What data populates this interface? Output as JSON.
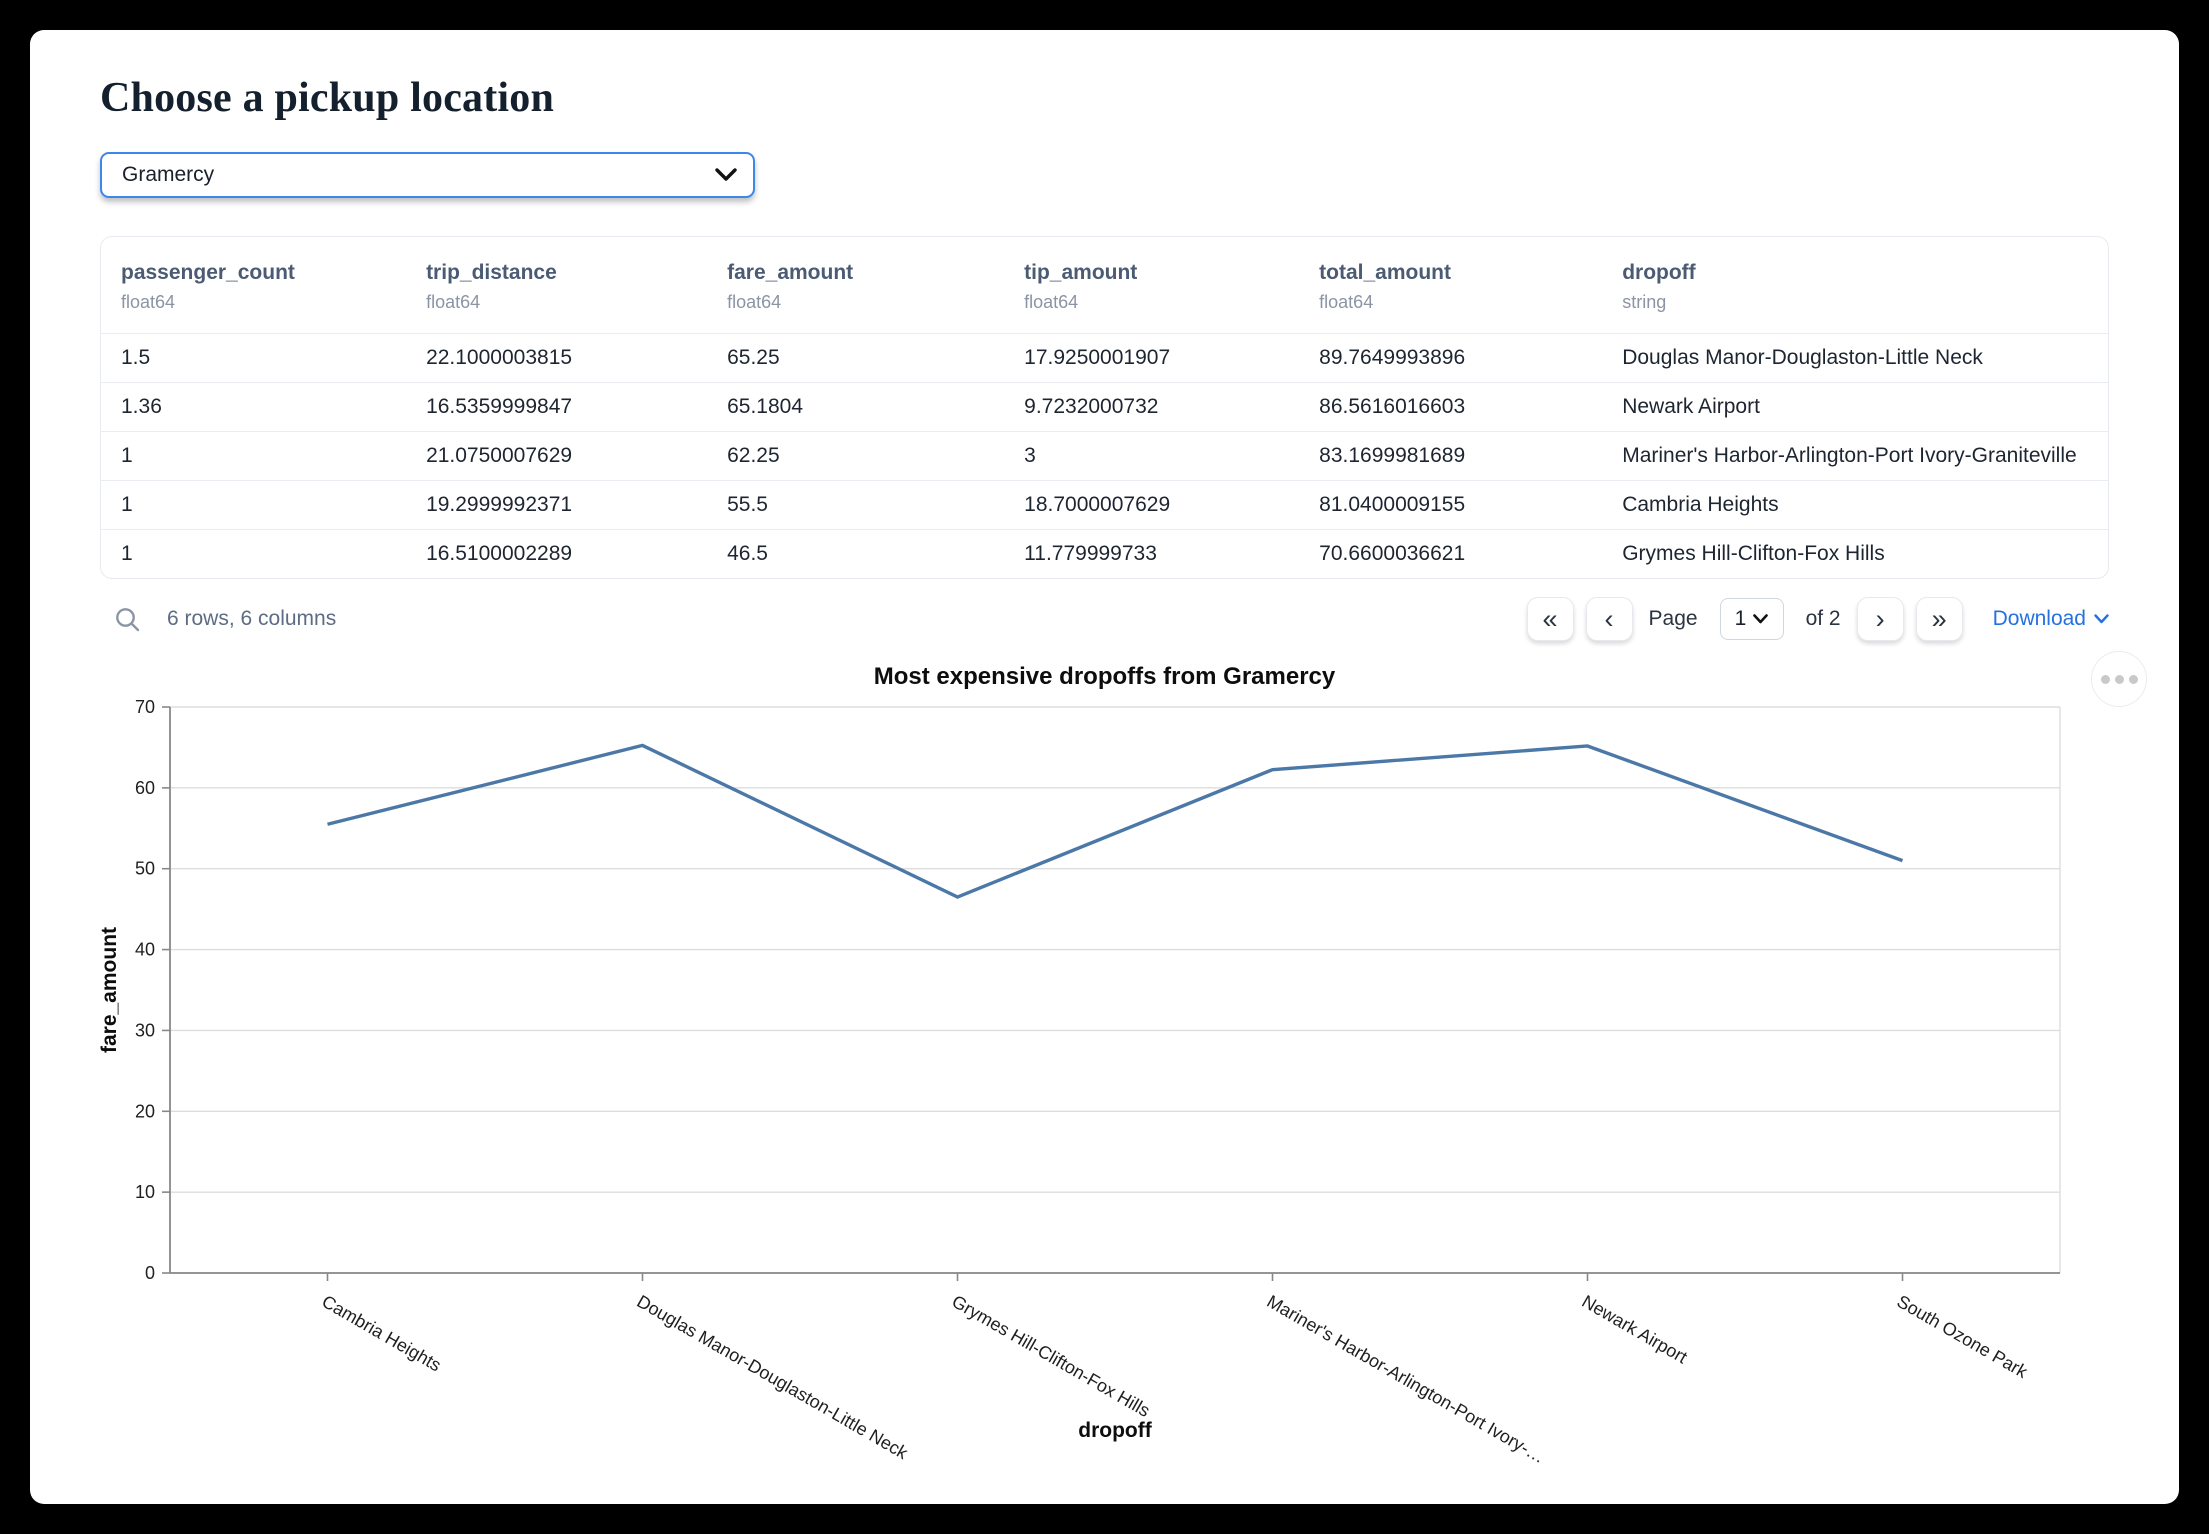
{
  "page": {
    "title": "Choose a pickup location"
  },
  "pickup_select": {
    "value": "Gramercy"
  },
  "table": {
    "columns": [
      {
        "name": "passenger_count",
        "type": "float64"
      },
      {
        "name": "trip_distance",
        "type": "float64"
      },
      {
        "name": "fare_amount",
        "type": "float64"
      },
      {
        "name": "tip_amount",
        "type": "float64"
      },
      {
        "name": "total_amount",
        "type": "float64"
      },
      {
        "name": "dropoff",
        "type": "string"
      }
    ],
    "rows": [
      [
        "1.5",
        "22.1000003815",
        "65.25",
        "17.9250001907",
        "89.7649993896",
        "Douglas Manor-Douglaston-Little Neck"
      ],
      [
        "1.36",
        "16.5359999847",
        "65.1804",
        "9.7232000732",
        "86.5616016603",
        "Newark Airport"
      ],
      [
        "1",
        "21.0750007629",
        "62.25",
        "3",
        "83.1699981689",
        "Mariner's Harbor-Arlington-Port Ivory-Graniteville"
      ],
      [
        "1",
        "19.2999992371",
        "55.5",
        "18.7000007629",
        "81.0400009155",
        "Cambria Heights"
      ],
      [
        "1",
        "16.5100002289",
        "46.5",
        "11.779999733",
        "70.6600036621",
        "Grymes Hill-Clifton-Fox Hills"
      ]
    ]
  },
  "footer": {
    "summary": "6 rows, 6 columns",
    "page_label": "Page",
    "page_value": "1",
    "of_label": "of 2",
    "download_label": "Download"
  },
  "colors": {
    "select_border": "#3c86ec",
    "download_link": "#2472e0",
    "line": "#4c78a8"
  },
  "chart_data": {
    "type": "line",
    "title": "Most expensive dropoffs from Gramercy",
    "xlabel": "dropoff",
    "ylabel": "fare_amount",
    "categories": [
      "Cambria Heights",
      "Douglas Manor-Douglaston-Little Neck",
      "Grymes Hill-Clifton-Fox Hills",
      "Mariner's Harbor-Arlington-Port Ivory-…",
      "Newark Airport",
      "South Ozone Park"
    ],
    "values": [
      55.5,
      65.25,
      46.5,
      62.25,
      65.1804,
      51
    ],
    "ylim": [
      0,
      70
    ],
    "yticks": [
      0,
      10,
      20,
      30,
      40,
      50,
      60,
      70
    ],
    "grid": true,
    "legend": false,
    "line_color": "#4c78a8"
  }
}
